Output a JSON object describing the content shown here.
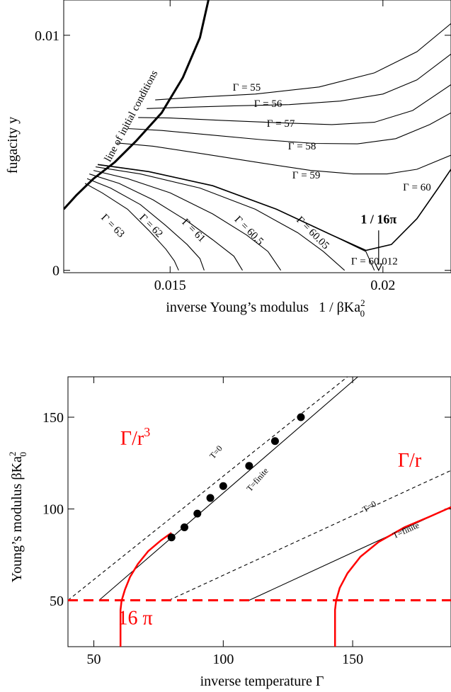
{
  "chart_data": [
    {
      "type": "line",
      "xlabel": "inverse Young’s modulus",
      "xlabel_formula": {
        "pre": "1 / βKa",
        "sup": "2",
        "sub": "0"
      },
      "ylabel": "fugacity y",
      "xlim": [
        0.0125,
        0.0216
      ],
      "ylim": [
        -0.0001,
        0.0115
      ],
      "x_ticks": [
        {
          "value": 0.015,
          "label": "0.015"
        },
        {
          "value": 0.02,
          "label": "0.02"
        }
      ],
      "y_ticks": [
        {
          "value": 0.0,
          "label": "0"
        },
        {
          "value": 0.01,
          "label": "0.01"
        }
      ],
      "grid": false,
      "initial_line": {
        "label": "line of initial conditions",
        "x": [
          0.0125,
          0.0128,
          0.0132,
          0.0137,
          0.0142,
          0.0148,
          0.0153,
          0.0157,
          0.0159
        ],
        "y": [
          0.0026,
          0.0032,
          0.0039,
          0.0046,
          0.0055,
          0.0067,
          0.0082,
          0.0099,
          0.0115
        ]
      },
      "flows": [
        {
          "name": "Γ = 55",
          "x": [
            0.01465,
            0.0155,
            0.017,
            0.0185,
            0.0198,
            0.0208,
            0.0216
          ],
          "y": [
            0.00725,
            0.00735,
            0.0075,
            0.0078,
            0.0084,
            0.0093,
            0.0105
          ]
        },
        {
          "name": "Γ = 56",
          "x": [
            0.01445,
            0.0152,
            0.0165,
            0.0178,
            0.019,
            0.02,
            0.0208,
            0.0216
          ],
          "y": [
            0.00688,
            0.00693,
            0.007,
            0.00705,
            0.0072,
            0.0075,
            0.0081,
            0.0092
          ]
        },
        {
          "name": "Γ = 57",
          "x": [
            0.01425,
            0.015,
            0.0162,
            0.0175,
            0.0188,
            0.0198,
            0.0207,
            0.0216
          ],
          "y": [
            0.0065,
            0.00648,
            0.00638,
            0.00628,
            0.0062,
            0.0063,
            0.0068,
            0.0079
          ]
        },
        {
          "name": "Γ = 58",
          "x": [
            0.014,
            0.0148,
            0.016,
            0.0172,
            0.0184,
            0.0194,
            0.0203,
            0.0211,
            0.0216
          ],
          "y": [
            0.00603,
            0.00595,
            0.00575,
            0.00555,
            0.0054,
            0.00538,
            0.0056,
            0.0062,
            0.0067
          ]
        },
        {
          "name": "Γ = 59",
          "x": [
            0.01375,
            0.0146,
            0.0158,
            0.0171,
            0.0183,
            0.0193,
            0.0201,
            0.0208,
            0.0216
          ],
          "y": [
            0.00542,
            0.00528,
            0.00495,
            0.00458,
            0.00425,
            0.0041,
            0.0041,
            0.0043,
            0.0049
          ]
        },
        {
          "name": "Γ = 60",
          "x": [
            0.0133,
            0.0145,
            0.016,
            0.0175,
            0.0188,
            0.0196,
            0.0202,
            0.0208,
            0.0213,
            0.0216
          ],
          "y": [
            0.0045,
            0.0042,
            0.0036,
            0.0026,
            0.0015,
            0.00085,
            0.0011,
            0.0022,
            0.0035,
            0.0043
          ]
        },
        {
          "name": "Γ = 60.012",
          "x": [
            0.0133,
            0.0145,
            0.016,
            0.0175,
            0.0188,
            0.0196,
            0.0198
          ],
          "y": [
            0.0045,
            0.0042,
            0.0036,
            0.0026,
            0.0015,
            0.0008,
            0.0
          ]
        },
        {
          "name": "Γ = 60.05",
          "x": [
            0.01325,
            0.0143,
            0.0157,
            0.017,
            0.018,
            0.0186,
            0.0191
          ],
          "y": [
            0.0044,
            0.0041,
            0.0035,
            0.0026,
            0.0016,
            0.0008,
            0.0
          ]
        },
        {
          "name": "Γ = 60.5",
          "x": [
            0.0132,
            0.014,
            0.015,
            0.016,
            0.0168,
            0.0173,
            0.0176
          ],
          "y": [
            0.00425,
            0.0039,
            0.0033,
            0.0024,
            0.0015,
            0.0008,
            0.0
          ]
        },
        {
          "name": "Γ = 61",
          "x": [
            0.0131,
            0.0138,
            0.0146,
            0.0154,
            0.016,
            0.0165,
            0.0167
          ],
          "y": [
            0.0041,
            0.0037,
            0.003,
            0.0021,
            0.0013,
            0.0006,
            0.0
          ]
        },
        {
          "name": "Γ = 62",
          "x": [
            0.01305,
            0.0136,
            0.0143,
            0.0149,
            0.0154,
            0.0157,
            0.0158
          ],
          "y": [
            0.0039,
            0.0035,
            0.0028,
            0.0019,
            0.0011,
            0.0005,
            0.0
          ]
        },
        {
          "name": "Γ = 63",
          "x": [
            0.013,
            0.0134,
            0.014,
            0.0145,
            0.0149,
            0.0151,
            0.0152
          ],
          "y": [
            0.0037,
            0.0033,
            0.0026,
            0.0017,
            0.0009,
            0.0004,
            0.0
          ]
        }
      ],
      "annotations": [
        {
          "text": "Γ = 55",
          "x": 0.0168,
          "y": 0.00765
        },
        {
          "text": "Γ = 56",
          "x": 0.0173,
          "y": 0.00695
        },
        {
          "text": "Γ = 57",
          "x": 0.0176,
          "y": 0.0061
        },
        {
          "text": "Γ = 58",
          "x": 0.0181,
          "y": 0.00515
        },
        {
          "text": "Γ = 59",
          "x": 0.0182,
          "y": 0.0039
        },
        {
          "text": "Γ = 60",
          "x": 0.0208,
          "y": 0.0034
        },
        {
          "text": "Γ = 60.012",
          "x": 0.0198,
          "y": 0.00025
        },
        {
          "text": "Γ = 60.05",
          "x": 0.0183,
          "y": 0.0015,
          "rotate": 45
        },
        {
          "text": "Γ = 60.5",
          "x": 0.0168,
          "y": 0.0016,
          "rotate": 45
        },
        {
          "text": "Γ = 61",
          "x": 0.0155,
          "y": 0.0016,
          "rotate": 45
        },
        {
          "text": "Γ = 62",
          "x": 0.0145,
          "y": 0.0018,
          "rotate": 45
        },
        {
          "text": "Γ = 63",
          "x": 0.0136,
          "y": 0.0018,
          "rotate": 45
        }
      ],
      "arrow": {
        "label": "1 / 16π",
        "x": 0.0199,
        "y_from": 0.0017,
        "y_to": 0.0
      }
    },
    {
      "type": "line",
      "xlabel": "inverse temperature Γ",
      "ylabel_formula": {
        "pre": "Young’s modulus  βKa",
        "sup": "2",
        "sub": "0"
      },
      "xlim": [
        40,
        188
      ],
      "ylim": [
        25,
        172
      ],
      "x_ticks": [
        {
          "value": 50,
          "label": "50"
        },
        {
          "value": 100,
          "label": "100"
        },
        {
          "value": 150,
          "label": "150"
        }
      ],
      "y_ticks": [
        {
          "value": 50,
          "label": "50"
        },
        {
          "value": 100,
          "label": "100"
        },
        {
          "value": 150,
          "label": "150"
        }
      ],
      "grid": false,
      "hline": {
        "y": 50.27,
        "label": "16 π",
        "color": "#ff0000"
      },
      "series": [
        {
          "id": "cube_T0",
          "style": "dashed",
          "x": [
            40,
            148
          ],
          "y": [
            50.27,
            172
          ]
        },
        {
          "id": "cube_Tfinite",
          "style": "solid",
          "x": [
            52,
            152
          ],
          "y": [
            50.27,
            172
          ]
        },
        {
          "id": "cube_red",
          "style": "red",
          "x": [
            60.3,
            60.3,
            60.7,
            62,
            64,
            67,
            71,
            76,
            80
          ],
          "y": [
            25,
            45,
            50,
            56,
            63,
            70,
            77,
            83,
            87
          ]
        },
        {
          "id": "r_T0",
          "style": "dashed",
          "x": [
            79,
            188
          ],
          "y": [
            50.27,
            121
          ]
        },
        {
          "id": "r_Tfinite",
          "style": "solid",
          "x": [
            110,
            188
          ],
          "y": [
            50.27,
            101
          ]
        },
        {
          "id": "r_red",
          "style": "red",
          "x": [
            143.2,
            143.2,
            143.6,
            145,
            148,
            153,
            160,
            170,
            180,
            188
          ],
          "y": [
            25,
            45,
            50,
            57,
            65,
            74,
            82,
            90,
            96,
            101
          ]
        }
      ],
      "points": {
        "x": [
          80,
          85,
          90,
          95,
          100,
          110,
          120,
          130
        ],
        "y": [
          84.5,
          90,
          97.5,
          106,
          112.5,
          123.5,
          137,
          150
        ]
      },
      "labels": [
        {
          "text": "T=0",
          "x": 98,
          "y": 130,
          "rotate": -49
        },
        {
          "text": "T=finite",
          "x": 114,
          "y": 115,
          "rotate": -49
        },
        {
          "text": "T=0",
          "x": 157,
          "y": 100,
          "rotate": -31
        },
        {
          "text": "T=finite",
          "x": 171,
          "y": 87,
          "rotate": -24
        }
      ],
      "red_labels": [
        {
          "text": "Γ/r",
          "sup": "3",
          "x": 66,
          "y": 135
        },
        {
          "text": "Γ/r",
          "x": 172,
          "y": 123
        }
      ]
    }
  ]
}
